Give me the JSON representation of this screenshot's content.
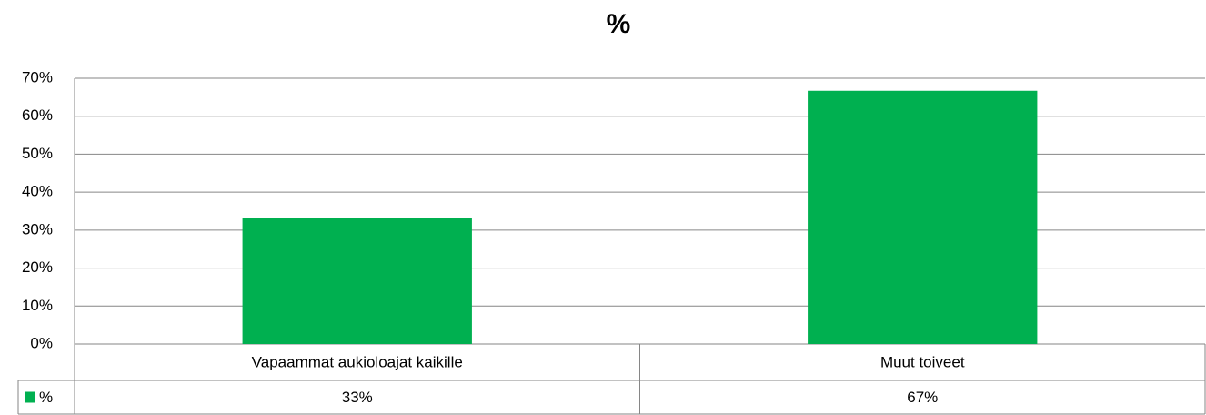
{
  "chart_data": {
    "type": "bar",
    "title": "%",
    "categories": [
      "Vapaammat aukioloajat kaikille",
      "Muut toiveet"
    ],
    "series": [
      {
        "name": "%",
        "color": "#00b050",
        "values": [
          33.3,
          66.7
        ],
        "value_labels": [
          "33%",
          "67%"
        ]
      }
    ],
    "ylim": [
      0,
      70
    ],
    "yticks": [
      {
        "value": 0,
        "label": "0%"
      },
      {
        "value": 10,
        "label": "10%"
      },
      {
        "value": 20,
        "label": "20%"
      },
      {
        "value": 30,
        "label": "30%"
      },
      {
        "value": 40,
        "label": "40%"
      },
      {
        "value": 50,
        "label": "50%"
      },
      {
        "value": 60,
        "label": "60%"
      },
      {
        "value": 70,
        "label": "70%"
      }
    ],
    "grid": true
  }
}
